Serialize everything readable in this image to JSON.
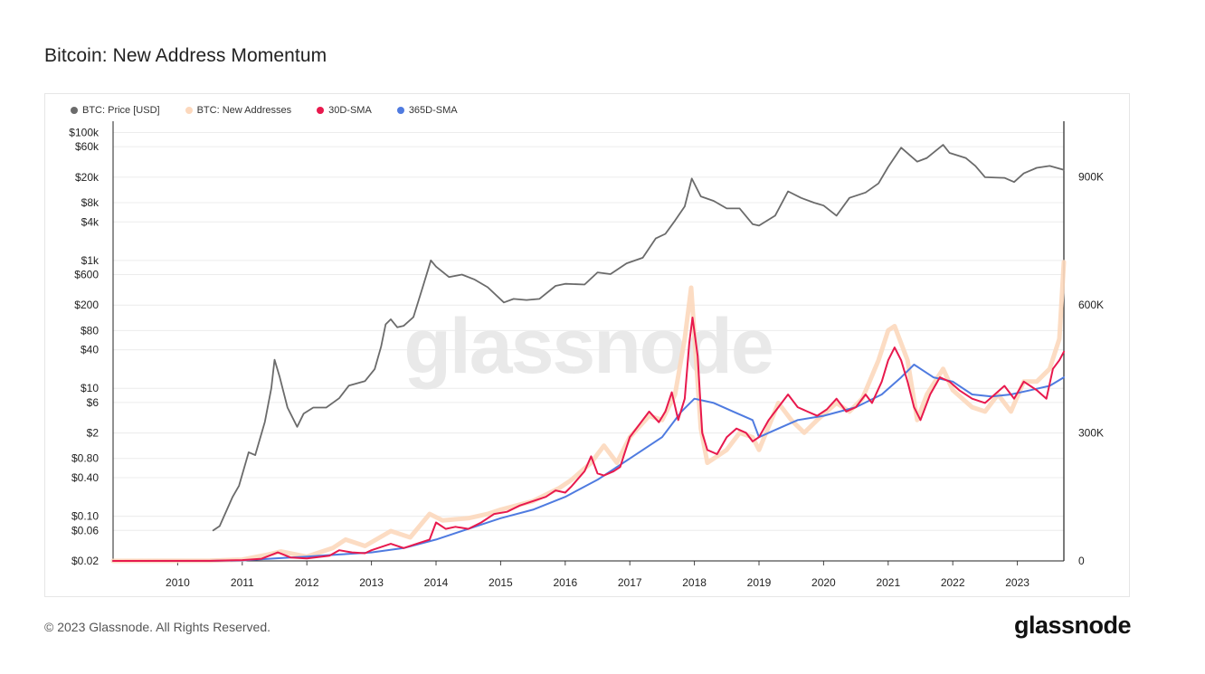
{
  "header": {
    "title": "Bitcoin: New Address Momentum"
  },
  "footer": {
    "copyright": "© 2023 Glassnode. All Rights Reserved.",
    "brand": "glassnode"
  },
  "watermark": "glassnode",
  "colors": {
    "price": "#6b6b6b",
    "new_addresses": "#fcd8bd",
    "sma30": "#e8194d",
    "sma365": "#4f7be0",
    "grid": "#ececec",
    "axis": "#111111"
  },
  "chart_data": {
    "type": "line",
    "legend": [
      {
        "label": "BTC: Price [USD]",
        "color": "#6b6b6b"
      },
      {
        "label": "BTC: New Addresses",
        "color": "#fcd8bd"
      },
      {
        "label": "30D-SMA",
        "color": "#e8194d"
      },
      {
        "label": "365D-SMA",
        "color": "#4f7be0"
      }
    ],
    "legend_position": "top-left",
    "x_ticks": [
      "2010",
      "2011",
      "2012",
      "2013",
      "2014",
      "2015",
      "2016",
      "2017",
      "2018",
      "2019",
      "2020",
      "2021",
      "2022",
      "2023"
    ],
    "x_range": [
      2009.0,
      2023.72
    ],
    "y_left": {
      "scale": "log",
      "range": [
        0.02,
        150000
      ],
      "ticks": [
        {
          "v": 100000,
          "label": "$100k"
        },
        {
          "v": 60000,
          "label": "$60k"
        },
        {
          "v": 20000,
          "label": "$20k"
        },
        {
          "v": 8000,
          "label": "$8k"
        },
        {
          "v": 4000,
          "label": "$4k"
        },
        {
          "v": 1000,
          "label": "$1k"
        },
        {
          "v": 600,
          "label": "$600"
        },
        {
          "v": 200,
          "label": "$200"
        },
        {
          "v": 80,
          "label": "$80"
        },
        {
          "v": 40,
          "label": "$40"
        },
        {
          "v": 10,
          "label": "$10"
        },
        {
          "v": 6,
          "label": "$6"
        },
        {
          "v": 2,
          "label": "$2"
        },
        {
          "v": 0.8,
          "label": "$0.80"
        },
        {
          "v": 0.4,
          "label": "$0.40"
        },
        {
          "v": 0.1,
          "label": "$0.10"
        },
        {
          "v": 0.06,
          "label": "$0.06"
        },
        {
          "v": 0.02,
          "label": "$0.02"
        }
      ]
    },
    "y_right": {
      "scale": "linear",
      "range": [
        0,
        1030000
      ],
      "ticks": [
        {
          "v": 900000,
          "label": "900K"
        },
        {
          "v": 600000,
          "label": "600K"
        },
        {
          "v": 300000,
          "label": "300K"
        },
        {
          "v": 0,
          "label": "0"
        }
      ]
    },
    "grid": true,
    "series": [
      {
        "name": "BTC: Price [USD]",
        "axis": "left",
        "points": [
          [
            2010.55,
            0.06
          ],
          [
            2010.65,
            0.07
          ],
          [
            2010.85,
            0.2
          ],
          [
            2010.95,
            0.3
          ],
          [
            2011.1,
            1.0
          ],
          [
            2011.2,
            0.9
          ],
          [
            2011.35,
            3
          ],
          [
            2011.45,
            10
          ],
          [
            2011.5,
            28
          ],
          [
            2011.58,
            15
          ],
          [
            2011.7,
            5
          ],
          [
            2011.85,
            2.5
          ],
          [
            2011.95,
            4
          ],
          [
            2012.1,
            5
          ],
          [
            2012.3,
            5
          ],
          [
            2012.5,
            7
          ],
          [
            2012.65,
            11
          ],
          [
            2012.9,
            13
          ],
          [
            2013.05,
            20
          ],
          [
            2013.15,
            45
          ],
          [
            2013.22,
            100
          ],
          [
            2013.3,
            120
          ],
          [
            2013.4,
            90
          ],
          [
            2013.5,
            95
          ],
          [
            2013.65,
            130
          ],
          [
            2013.8,
            400
          ],
          [
            2013.92,
            1000
          ],
          [
            2014.0,
            800
          ],
          [
            2014.2,
            550
          ],
          [
            2014.4,
            600
          ],
          [
            2014.6,
            500
          ],
          [
            2014.8,
            380
          ],
          [
            2015.05,
            220
          ],
          [
            2015.2,
            250
          ],
          [
            2015.4,
            240
          ],
          [
            2015.6,
            250
          ],
          [
            2015.85,
            400
          ],
          [
            2016.0,
            430
          ],
          [
            2016.3,
            420
          ],
          [
            2016.5,
            650
          ],
          [
            2016.7,
            610
          ],
          [
            2016.95,
            900
          ],
          [
            2017.2,
            1100
          ],
          [
            2017.4,
            2200
          ],
          [
            2017.55,
            2600
          ],
          [
            2017.7,
            4200
          ],
          [
            2017.85,
            7000
          ],
          [
            2017.96,
            19000
          ],
          [
            2018.1,
            10000
          ],
          [
            2018.3,
            8500
          ],
          [
            2018.5,
            6500
          ],
          [
            2018.7,
            6500
          ],
          [
            2018.9,
            3700
          ],
          [
            2019.0,
            3500
          ],
          [
            2019.25,
            5000
          ],
          [
            2019.45,
            12000
          ],
          [
            2019.65,
            9500
          ],
          [
            2019.85,
            8000
          ],
          [
            2020.0,
            7200
          ],
          [
            2020.2,
            5000
          ],
          [
            2020.4,
            9500
          ],
          [
            2020.65,
            11500
          ],
          [
            2020.85,
            16000
          ],
          [
            2021.0,
            29000
          ],
          [
            2021.2,
            58000
          ],
          [
            2021.45,
            35000
          ],
          [
            2021.6,
            40000
          ],
          [
            2021.85,
            64000
          ],
          [
            2021.95,
            48000
          ],
          [
            2022.2,
            40000
          ],
          [
            2022.35,
            30000
          ],
          [
            2022.5,
            20000
          ],
          [
            2022.8,
            19500
          ],
          [
            2022.95,
            16800
          ],
          [
            2023.1,
            23000
          ],
          [
            2023.3,
            28000
          ],
          [
            2023.5,
            30000
          ],
          [
            2023.72,
            26000
          ]
        ]
      },
      {
        "name": "BTC: New Addresses",
        "axis": "right",
        "points": [
          [
            2009.0,
            0
          ],
          [
            2010.5,
            500
          ],
          [
            2011.0,
            3000
          ],
          [
            2011.4,
            15000
          ],
          [
            2011.6,
            22000
          ],
          [
            2012.0,
            10000
          ],
          [
            2012.4,
            30000
          ],
          [
            2012.6,
            50000
          ],
          [
            2012.9,
            35000
          ],
          [
            2013.3,
            70000
          ],
          [
            2013.6,
            55000
          ],
          [
            2013.9,
            110000
          ],
          [
            2014.1,
            95000
          ],
          [
            2014.5,
            100000
          ],
          [
            2014.8,
            110000
          ],
          [
            2015.0,
            120000
          ],
          [
            2015.5,
            140000
          ],
          [
            2015.9,
            170000
          ],
          [
            2016.1,
            190000
          ],
          [
            2016.4,
            230000
          ],
          [
            2016.6,
            270000
          ],
          [
            2016.8,
            230000
          ],
          [
            2017.0,
            290000
          ],
          [
            2017.3,
            340000
          ],
          [
            2017.5,
            330000
          ],
          [
            2017.7,
            390000
          ],
          [
            2017.85,
            520000
          ],
          [
            2017.95,
            640000
          ],
          [
            2018.1,
            310000
          ],
          [
            2018.2,
            230000
          ],
          [
            2018.5,
            260000
          ],
          [
            2018.7,
            300000
          ],
          [
            2018.9,
            290000
          ],
          [
            2019.0,
            260000
          ],
          [
            2019.3,
            370000
          ],
          [
            2019.5,
            330000
          ],
          [
            2019.7,
            300000
          ],
          [
            2019.9,
            330000
          ],
          [
            2020.2,
            370000
          ],
          [
            2020.4,
            350000
          ],
          [
            2020.6,
            380000
          ],
          [
            2020.85,
            470000
          ],
          [
            2021.0,
            540000
          ],
          [
            2021.1,
            550000
          ],
          [
            2021.3,
            470000
          ],
          [
            2021.45,
            330000
          ],
          [
            2021.6,
            390000
          ],
          [
            2021.85,
            450000
          ],
          [
            2022.0,
            400000
          ],
          [
            2022.3,
            360000
          ],
          [
            2022.5,
            350000
          ],
          [
            2022.7,
            390000
          ],
          [
            2022.9,
            350000
          ],
          [
            2023.1,
            420000
          ],
          [
            2023.3,
            420000
          ],
          [
            2023.5,
            450000
          ],
          [
            2023.65,
            520000
          ],
          [
            2023.72,
            700000
          ]
        ]
      },
      {
        "name": "30D-SMA",
        "axis": "right",
        "points": [
          [
            2009.0,
            0
          ],
          [
            2010.5,
            200
          ],
          [
            2011.0,
            2000
          ],
          [
            2011.3,
            5000
          ],
          [
            2011.55,
            20000
          ],
          [
            2011.75,
            8000
          ],
          [
            2012.0,
            6000
          ],
          [
            2012.35,
            12000
          ],
          [
            2012.5,
            25000
          ],
          [
            2012.7,
            20000
          ],
          [
            2012.9,
            18000
          ],
          [
            2013.0,
            25000
          ],
          [
            2013.3,
            40000
          ],
          [
            2013.5,
            30000
          ],
          [
            2013.7,
            40000
          ],
          [
            2013.9,
            50000
          ],
          [
            2014.0,
            90000
          ],
          [
            2014.15,
            75000
          ],
          [
            2014.3,
            80000
          ],
          [
            2014.5,
            75000
          ],
          [
            2014.7,
            90000
          ],
          [
            2014.9,
            110000
          ],
          [
            2015.1,
            115000
          ],
          [
            2015.3,
            130000
          ],
          [
            2015.5,
            140000
          ],
          [
            2015.7,
            150000
          ],
          [
            2015.85,
            165000
          ],
          [
            2016.0,
            160000
          ],
          [
            2016.1,
            175000
          ],
          [
            2016.3,
            210000
          ],
          [
            2016.4,
            245000
          ],
          [
            2016.5,
            205000
          ],
          [
            2016.6,
            200000
          ],
          [
            2016.75,
            210000
          ],
          [
            2016.85,
            220000
          ],
          [
            2017.0,
            290000
          ],
          [
            2017.15,
            320000
          ],
          [
            2017.3,
            350000
          ],
          [
            2017.45,
            325000
          ],
          [
            2017.55,
            350000
          ],
          [
            2017.65,
            395000
          ],
          [
            2017.75,
            330000
          ],
          [
            2017.85,
            380000
          ],
          [
            2017.92,
            510000
          ],
          [
            2017.97,
            570000
          ],
          [
            2018.05,
            480000
          ],
          [
            2018.12,
            300000
          ],
          [
            2018.2,
            260000
          ],
          [
            2018.35,
            250000
          ],
          [
            2018.5,
            290000
          ],
          [
            2018.65,
            310000
          ],
          [
            2018.8,
            300000
          ],
          [
            2018.9,
            280000
          ],
          [
            2019.0,
            290000
          ],
          [
            2019.15,
            330000
          ],
          [
            2019.3,
            360000
          ],
          [
            2019.45,
            390000
          ],
          [
            2019.6,
            360000
          ],
          [
            2019.75,
            350000
          ],
          [
            2019.9,
            340000
          ],
          [
            2020.05,
            355000
          ],
          [
            2020.2,
            380000
          ],
          [
            2020.35,
            350000
          ],
          [
            2020.5,
            360000
          ],
          [
            2020.65,
            390000
          ],
          [
            2020.75,
            370000
          ],
          [
            2020.9,
            420000
          ],
          [
            2021.0,
            470000
          ],
          [
            2021.1,
            500000
          ],
          [
            2021.2,
            470000
          ],
          [
            2021.3,
            420000
          ],
          [
            2021.4,
            360000
          ],
          [
            2021.5,
            330000
          ],
          [
            2021.65,
            390000
          ],
          [
            2021.8,
            430000
          ],
          [
            2021.95,
            420000
          ],
          [
            2022.1,
            400000
          ],
          [
            2022.3,
            380000
          ],
          [
            2022.5,
            370000
          ],
          [
            2022.65,
            390000
          ],
          [
            2022.8,
            410000
          ],
          [
            2022.95,
            380000
          ],
          [
            2023.1,
            420000
          ],
          [
            2023.3,
            400000
          ],
          [
            2023.45,
            380000
          ],
          [
            2023.55,
            450000
          ],
          [
            2023.65,
            470000
          ],
          [
            2023.72,
            490000
          ]
        ]
      },
      {
        "name": "365D-SMA",
        "axis": "right",
        "points": [
          [
            2009.0,
            0
          ],
          [
            2010.5,
            100
          ],
          [
            2011.0,
            1000
          ],
          [
            2011.5,
            6000
          ],
          [
            2012.0,
            10000
          ],
          [
            2012.5,
            15000
          ],
          [
            2013.0,
            20000
          ],
          [
            2013.5,
            30000
          ],
          [
            2014.0,
            50000
          ],
          [
            2014.5,
            75000
          ],
          [
            2015.0,
            100000
          ],
          [
            2015.5,
            120000
          ],
          [
            2016.0,
            150000
          ],
          [
            2016.5,
            190000
          ],
          [
            2017.0,
            240000
          ],
          [
            2017.5,
            290000
          ],
          [
            2017.8,
            350000
          ],
          [
            2018.0,
            380000
          ],
          [
            2018.3,
            370000
          ],
          [
            2018.6,
            350000
          ],
          [
            2018.9,
            330000
          ],
          [
            2019.0,
            290000
          ],
          [
            2019.3,
            310000
          ],
          [
            2019.6,
            330000
          ],
          [
            2020.0,
            340000
          ],
          [
            2020.5,
            360000
          ],
          [
            2020.9,
            390000
          ],
          [
            2021.2,
            430000
          ],
          [
            2021.4,
            460000
          ],
          [
            2021.7,
            430000
          ],
          [
            2022.0,
            420000
          ],
          [
            2022.3,
            390000
          ],
          [
            2022.6,
            385000
          ],
          [
            2022.9,
            390000
          ],
          [
            2023.2,
            400000
          ],
          [
            2023.5,
            410000
          ],
          [
            2023.72,
            430000
          ]
        ]
      }
    ]
  }
}
